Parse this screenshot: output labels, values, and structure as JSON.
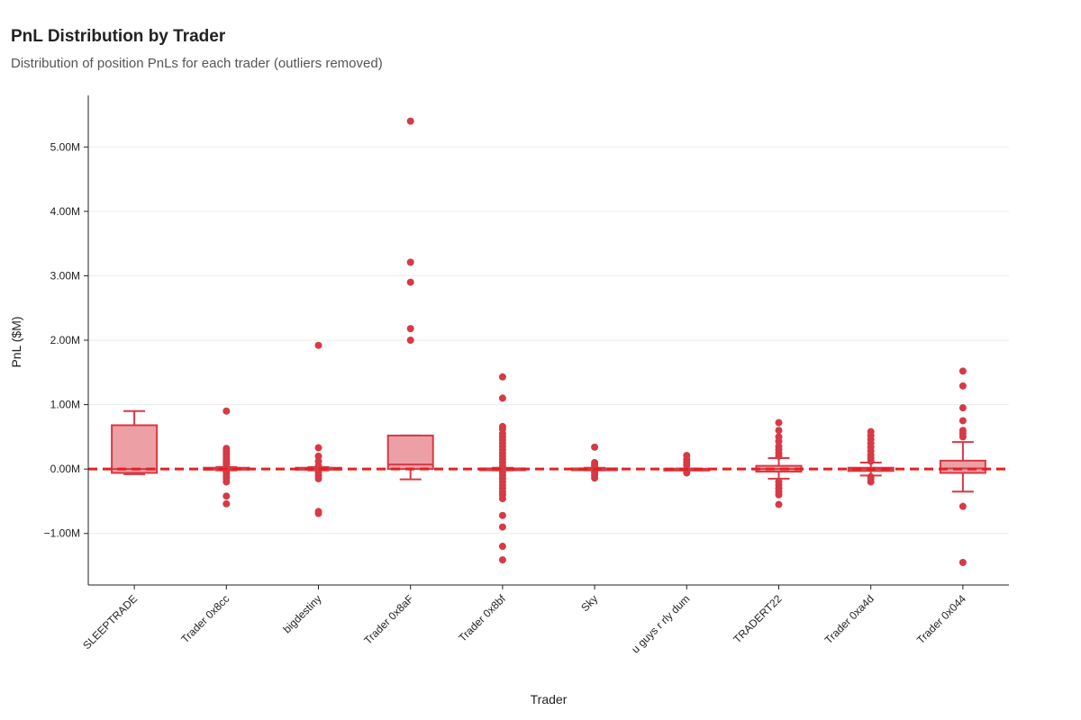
{
  "header": {
    "title": "PnL Distribution by Trader",
    "subtitle": "Distribution of position PnLs for each trader (outliers removed)"
  },
  "colors": {
    "accent": "#d63a45",
    "box_fill": "#eca0a6",
    "zero_line": "#e52020",
    "grid": "#ebebeb",
    "axis": "#222222"
  },
  "chart_data": {
    "type": "box",
    "title": "PnL Distribution by Trader",
    "xlabel": "Trader",
    "ylabel": "PnL ($M)",
    "ylim": [
      -1.8,
      5.8
    ],
    "yticks": [
      -1,
      0,
      1,
      2,
      3,
      4,
      5
    ],
    "ytick_labels": [
      "−1.00M",
      "0.00M",
      "1.00M",
      "2.00M",
      "3.00M",
      "4.00M",
      "5.00M"
    ],
    "reference_line": 0,
    "categories": [
      "SLEEPTRADE",
      "Trader 0x8cc",
      "bigdestiny",
      "Trader 0x8aF",
      "Trader 0x8bf",
      "Sky",
      "u guys r rly dum",
      "TRADERT22",
      "Trader 0xa4d",
      "Trader 0x044"
    ],
    "boxes": [
      {
        "min": -0.08,
        "q1": -0.06,
        "median": 0.0,
        "q3": 0.68,
        "max": 0.9
      },
      {
        "min": -0.02,
        "q1": -0.01,
        "median": 0.0,
        "q3": 0.02,
        "max": 0.03
      },
      {
        "min": -0.02,
        "q1": -0.01,
        "median": 0.0,
        "q3": 0.02,
        "max": 0.03
      },
      {
        "min": -0.16,
        "q1": 0.0,
        "median": 0.07,
        "q3": 0.52,
        "max": 0.52
      },
      {
        "min": -0.02,
        "q1": -0.01,
        "median": 0.0,
        "q3": 0.01,
        "max": 0.02
      },
      {
        "min": -0.02,
        "q1": -0.01,
        "median": 0.0,
        "q3": 0.01,
        "max": 0.02
      },
      {
        "min": -0.01,
        "q1": -0.005,
        "median": 0.0,
        "q3": 0.005,
        "max": 0.01
      },
      {
        "min": -0.15,
        "q1": -0.04,
        "median": 0.0,
        "q3": 0.05,
        "max": 0.17
      },
      {
        "min": -0.1,
        "q1": -0.03,
        "median": 0.0,
        "q3": 0.02,
        "max": 0.1
      },
      {
        "min": -0.35,
        "q1": -0.06,
        "median": 0.01,
        "q3": 0.13,
        "max": 0.42
      }
    ],
    "points": [
      [],
      [
        0.9,
        0.32,
        0.28,
        0.25,
        0.22,
        0.18,
        0.15,
        0.12,
        0.1,
        0.08,
        0.06,
        -0.05,
        -0.08,
        -0.12,
        -0.15,
        -0.2,
        -0.42,
        -0.54
      ],
      [
        1.92,
        0.33,
        0.2,
        0.12,
        0.05,
        -0.05,
        -0.1,
        -0.15,
        -0.66,
        -0.69
      ],
      [
        5.4,
        3.21,
        2.9,
        2.18,
        2.0
      ],
      [
        1.43,
        1.1,
        0.66,
        0.62,
        0.55,
        0.5,
        0.45,
        0.4,
        0.35,
        0.3,
        0.25,
        0.2,
        0.15,
        0.1,
        0.05,
        -0.05,
        -0.1,
        -0.15,
        -0.2,
        -0.25,
        -0.3,
        -0.35,
        -0.4,
        -0.46,
        -0.72,
        -0.9,
        -1.2,
        -1.41
      ],
      [
        0.34,
        0.1,
        0.07,
        0.04,
        -0.03,
        -0.06,
        -0.1,
        -0.14
      ],
      [
        0.21,
        0.15,
        0.1,
        0.06,
        -0.03,
        -0.06
      ],
      [
        0.72,
        0.6,
        0.5,
        0.43,
        0.35,
        0.3,
        0.25,
        0.2,
        -0.2,
        -0.25,
        -0.3,
        -0.35,
        -0.4,
        -0.55
      ],
      [
        0.58,
        0.52,
        0.46,
        0.4,
        0.34,
        0.28,
        0.22,
        0.17,
        0.12,
        -0.12,
        -0.15,
        -0.2
      ],
      [
        1.52,
        1.29,
        0.95,
        0.75,
        0.6,
        0.55,
        0.5,
        -0.58,
        -1.45
      ]
    ]
  }
}
